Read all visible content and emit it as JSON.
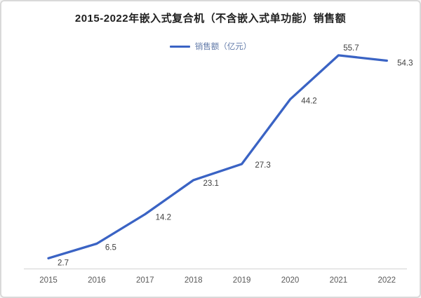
{
  "window": {
    "background": "#ffffff",
    "border_color": "#d9d9d9"
  },
  "chart_data": {
    "type": "line",
    "title": "2015-2022年嵌入式复合机（不含嵌入式单功能）销售额",
    "categories": [
      "2015",
      "2016",
      "2017",
      "2018",
      "2019",
      "2020",
      "2021",
      "2022"
    ],
    "series": [
      {
        "name": "销售额（亿元）",
        "values": [
          2.7,
          6.5,
          14.2,
          23.1,
          27.3,
          44.2,
          55.7,
          54.3
        ],
        "color": "#3a63c4"
      }
    ],
    "data_labels": [
      "2.7",
      "6.5",
      "14.2",
      "23.1",
      "27.3",
      "44.2",
      "55.7",
      "54.3"
    ],
    "legend_position": "top",
    "grid": false,
    "y_axis_visible": false,
    "ylim": [
      0,
      60
    ],
    "xlabel": "",
    "ylabel": "",
    "axis_line_color": "#d9d9d9",
    "axis_label_color": "#595959",
    "data_label_color": "#404040",
    "legend_text_color": "#6079a8",
    "title_color": "#1f1f1f"
  }
}
